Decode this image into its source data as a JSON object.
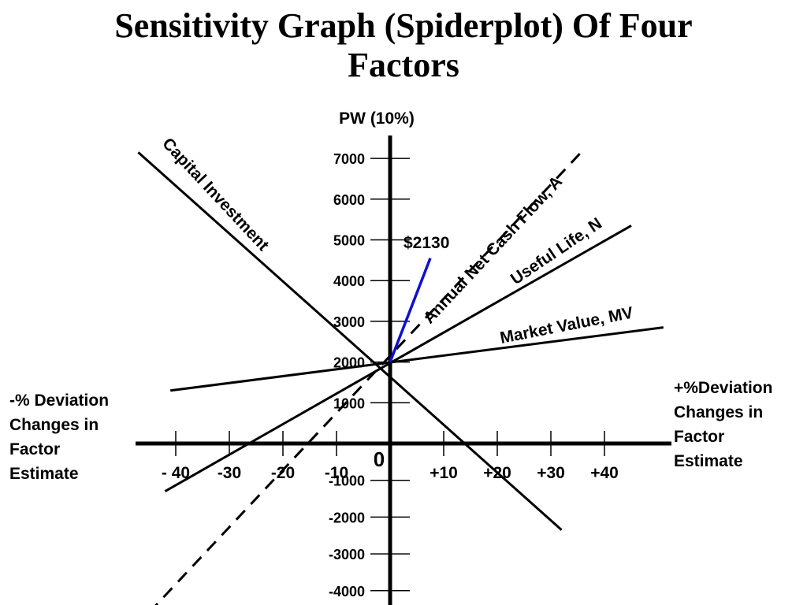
{
  "chart_data": {
    "type": "line",
    "title_lines": [
      "Sensitivity Graph (Spiderplot) Of Four",
      "Factors"
    ],
    "ylabel": "PW (10%)",
    "origin_label": "0",
    "x_ticks": [
      {
        "value": -40,
        "label": "- 40"
      },
      {
        "value": -30,
        "label": "-30"
      },
      {
        "value": -20,
        "label": "-20"
      },
      {
        "value": -10,
        "label": "-10"
      },
      {
        "value": 10,
        "label": "+10"
      },
      {
        "value": 20,
        "label": "+20"
      },
      {
        "value": 30,
        "label": "+30"
      },
      {
        "value": 40,
        "label": "+40"
      }
    ],
    "y_ticks": [
      {
        "value": 7000,
        "label": "7000"
      },
      {
        "value": 6000,
        "label": "6000"
      },
      {
        "value": 5000,
        "label": "5000"
      },
      {
        "value": 4000,
        "label": "4000"
      },
      {
        "value": 3000,
        "label": "3000"
      },
      {
        "value": 2000,
        "label": "2000"
      },
      {
        "value": 1000,
        "label": "1000"
      },
      {
        "value": -1000,
        "label": "-1000"
      },
      {
        "value": -2000,
        "label": "-2000"
      },
      {
        "value": -3000,
        "label": "-3000"
      },
      {
        "value": -4000,
        "label": "-4000"
      }
    ],
    "left_axis_label": [
      "-% Deviation",
      "Changes in",
      "Factor",
      "Estimate"
    ],
    "right_axis_label": [
      "+%Deviation",
      "Changes in",
      "Factor",
      "Estimate"
    ],
    "series": [
      {
        "name": "Capital Investment",
        "style": "solid",
        "color": "#000000",
        "points": [
          [
            -47,
            7150
          ],
          [
            32,
            -2350
          ]
        ]
      },
      {
        "name": "Annual Net Cash Flow, A",
        "style": "dashed",
        "color": "#000000",
        "points": [
          [
            -45,
            -4600
          ],
          [
            36,
            7200
          ]
        ]
      },
      {
        "name": "Useful Life, N",
        "style": "solid",
        "color": "#000000",
        "points": [
          [
            -42,
            -1300
          ],
          [
            45,
            5350
          ]
        ]
      },
      {
        "name": "Market Value, MV",
        "style": "solid",
        "color": "#000000",
        "points": [
          [
            -41,
            1300
          ],
          [
            51,
            2850
          ]
        ]
      },
      {
        "name": "$2130",
        "style": "solid",
        "color": "#1010d0",
        "points": [
          [
            0,
            2000
          ],
          [
            7.5,
            4550
          ]
        ]
      }
    ]
  }
}
